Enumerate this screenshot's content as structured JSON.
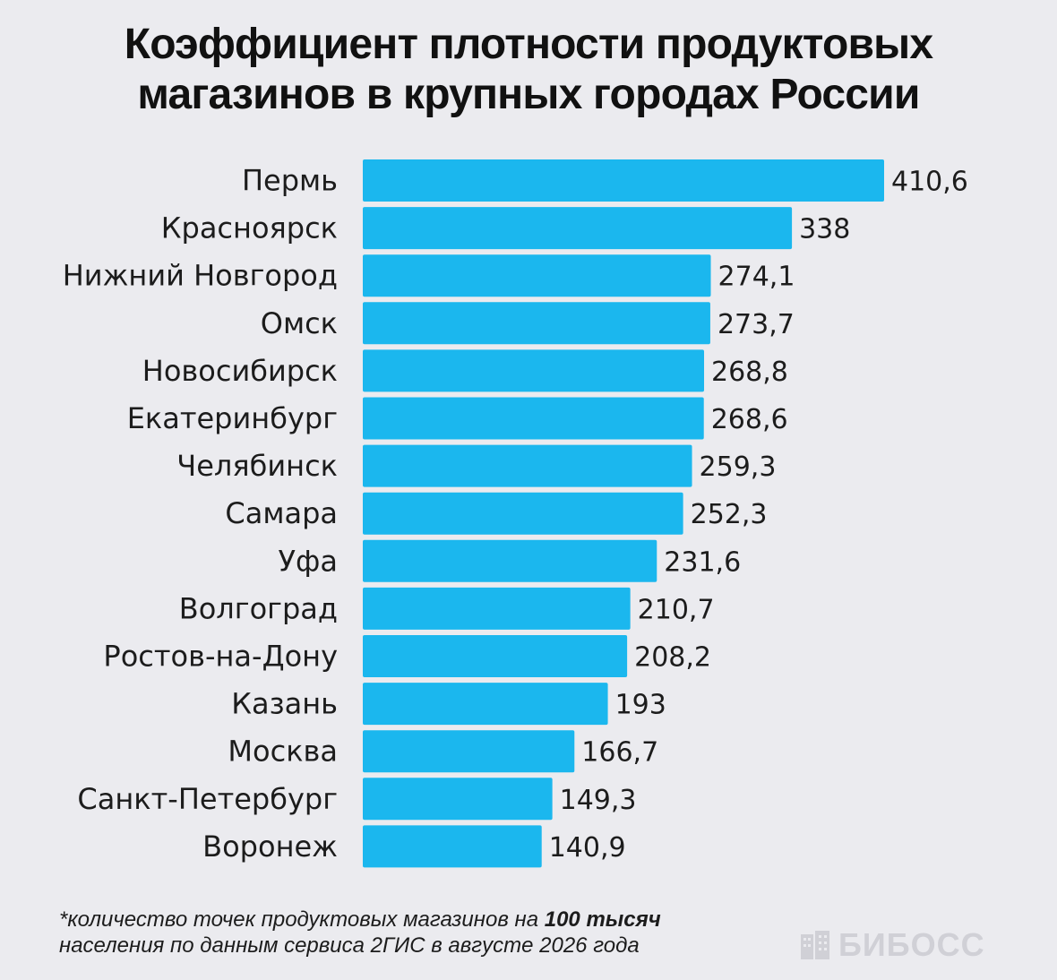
{
  "title": {
    "line1": "Коэффициент плотности продуктовых",
    "line2": "магазинов в крупных городах России"
  },
  "chart_data": {
    "type": "bar",
    "orientation": "horizontal",
    "categories": [
      "Пермь",
      "Красноярск",
      "Нижний Новгород",
      "Омск",
      "Новосибирск",
      "Екатеринбург",
      "Челябинск",
      "Самара",
      "Уфа",
      "Волгоград",
      "Ростов-на-Дону",
      "Казань",
      "Москва",
      "Санкт-Петербург",
      "Воронеж"
    ],
    "values": [
      410.6,
      338,
      274.1,
      273.7,
      268.8,
      268.6,
      259.3,
      252.3,
      231.6,
      210.7,
      208.2,
      193,
      166.7,
      149.3,
      140.9
    ],
    "value_labels": [
      "410,6",
      "338",
      "274,1",
      "273,7",
      "268,8",
      "268,6",
      "259,3",
      "252,3",
      "231,6",
      "210,7",
      "208,2",
      "193",
      "166,7",
      "149,3",
      "140,9"
    ],
    "xlim": [
      0,
      410.6
    ],
    "bar_color": "#1bb7ee",
    "grid": false,
    "legend": "none"
  },
  "footnote": {
    "line1_prefix": "*количество точек продуктовых магазинов на ",
    "line1_bold": "100 тысяч",
    "line2": "населения по данным сервиса 2ГИС в августе 2026 года"
  },
  "logo": {
    "text": "БИБОСС",
    "icon": "building-icon",
    "color": "#d0d0d6"
  }
}
